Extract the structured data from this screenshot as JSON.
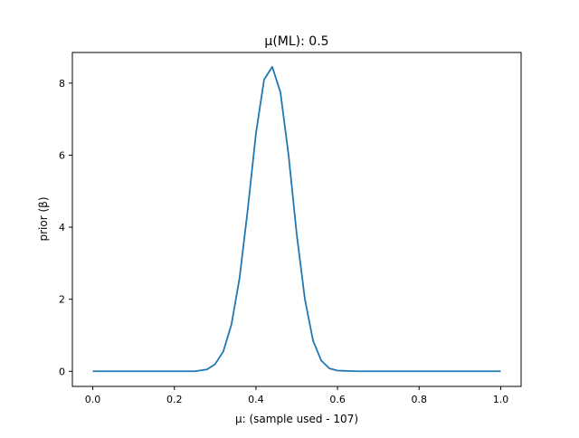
{
  "chart_data": {
    "type": "line",
    "title": "μ(ML): 0.5",
    "xlabel": "μ: (sample used - 107)",
    "ylabel": "prior (β)",
    "xlim": [
      -0.05,
      1.05
    ],
    "ylim": [
      -0.42,
      8.85
    ],
    "xticks": [
      0.0,
      0.2,
      0.4,
      0.6,
      0.8,
      1.0
    ],
    "xtick_labels": [
      "0.0",
      "0.2",
      "0.4",
      "0.6",
      "0.8",
      "1.0"
    ],
    "yticks": [
      0,
      2,
      4,
      6,
      8
    ],
    "ytick_labels": [
      "0",
      "2",
      "4",
      "6",
      "8"
    ],
    "grid": false,
    "legend": "none",
    "series": [
      {
        "color": "#1f77b4",
        "x": [
          0.0,
          0.05,
          0.1,
          0.15,
          0.2,
          0.25,
          0.28,
          0.3,
          0.32,
          0.34,
          0.36,
          0.38,
          0.4,
          0.42,
          0.44,
          0.46,
          0.48,
          0.5,
          0.52,
          0.54,
          0.56,
          0.58,
          0.6,
          0.65,
          0.7,
          0.75,
          0.8,
          0.85,
          0.9,
          0.95,
          1.0
        ],
        "y": [
          0.0,
          0.0,
          0.0,
          0.0,
          0.0,
          0.0,
          0.05,
          0.2,
          0.55,
          1.3,
          2.6,
          4.5,
          6.6,
          8.1,
          8.45,
          7.75,
          6.0,
          3.8,
          2.0,
          0.85,
          0.3,
          0.08,
          0.02,
          0.0,
          0.0,
          0.0,
          0.0,
          0.0,
          0.0,
          0.0,
          0.0
        ]
      }
    ]
  }
}
